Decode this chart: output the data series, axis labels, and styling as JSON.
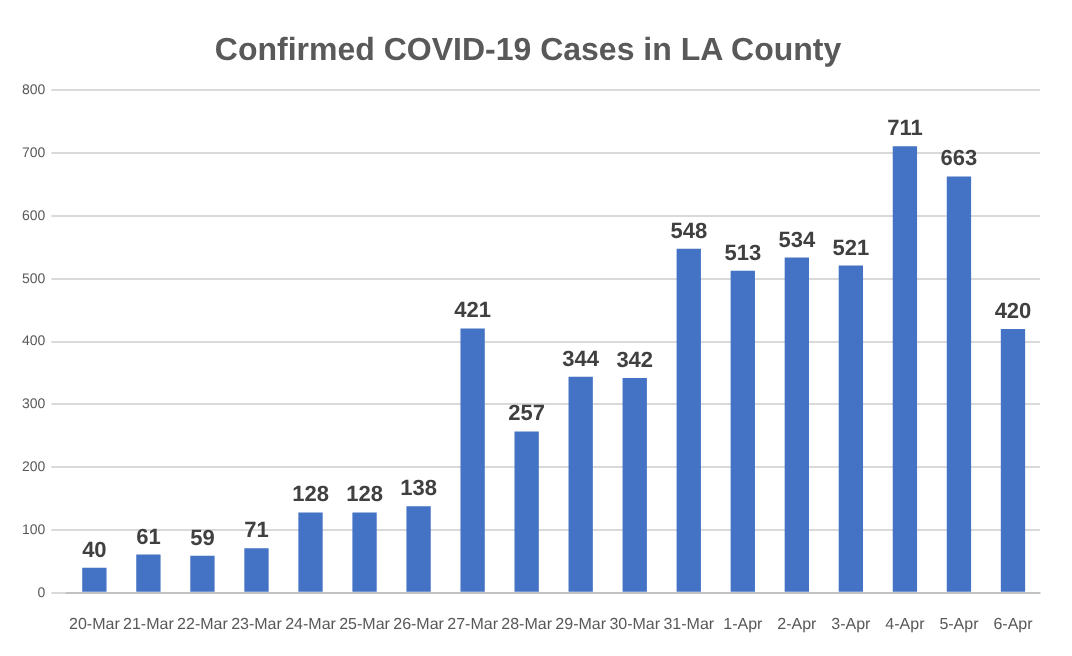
{
  "chart_data": {
    "type": "bar",
    "title": "Confirmed COVID-19 Cases in LA County",
    "categories": [
      "20-Mar",
      "21-Mar",
      "22-Mar",
      "23-Mar",
      "24-Mar",
      "25-Mar",
      "26-Mar",
      "27-Mar",
      "28-Mar",
      "29-Mar",
      "30-Mar",
      "31-Mar",
      "1-Apr",
      "2-Apr",
      "3-Apr",
      "4-Apr",
      "5-Apr",
      "6-Apr"
    ],
    "values": [
      40,
      61,
      59,
      71,
      128,
      128,
      138,
      421,
      257,
      344,
      342,
      548,
      513,
      534,
      521,
      711,
      663,
      420
    ],
    "color": "#4472c4",
    "ylim": [
      0,
      800
    ],
    "yticks": [
      0,
      100,
      200,
      300,
      400,
      500,
      600,
      700,
      800
    ],
    "grid": "y",
    "data_labels": true
  }
}
